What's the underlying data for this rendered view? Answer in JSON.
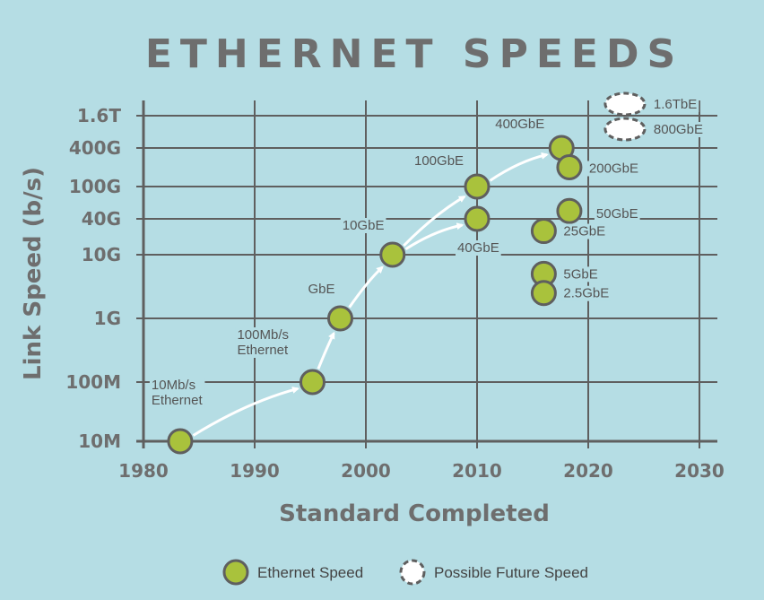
{
  "chart_data": {
    "type": "scatter",
    "title": "ETHERNET SPEEDS",
    "xlabel": "Standard Completed",
    "ylabel": "Link Speed (b/s)",
    "xlim": [
      1980,
      2030
    ],
    "xticks": [
      1980,
      1990,
      2000,
      2010,
      2020,
      2030
    ],
    "xtick_labels": [
      "1980",
      "1990",
      "2000",
      "2010",
      "2020",
      "2030"
    ],
    "y_scale": "log",
    "yticks": [
      {
        "label": "10M",
        "value": 10000000
      },
      {
        "label": "100M",
        "value": 100000000
      },
      {
        "label": "1G",
        "value": 1000000000
      },
      {
        "label": "10G",
        "value": 10000000000
      },
      {
        "label": "40G",
        "value": 40000000000
      },
      {
        "label": "100G",
        "value": 100000000000
      },
      {
        "label": "400G",
        "value": 400000000000
      },
      {
        "label": "1.6T",
        "value": 1600000000000
      }
    ],
    "grid": true,
    "series": [
      {
        "name": "Ethernet Speed",
        "color": "#a9c23c",
        "style": "solid",
        "points": [
          {
            "x": 1983.3,
            "y": 10000000,
            "label": "10Mb/s\nEthernet"
          },
          {
            "x": 1995.2,
            "y": 100000000,
            "label": "100Mb/s\nEthernet"
          },
          {
            "x": 1997.7,
            "y": 1000000000,
            "label": "GbE"
          },
          {
            "x": 2002.4,
            "y": 10000000000,
            "label": "10GbE"
          },
          {
            "x": 2010.0,
            "y": 40000000000,
            "label": "40GbE"
          },
          {
            "x": 2010.0,
            "y": 100000000000,
            "label": "100GbE"
          },
          {
            "x": 2017.6,
            "y": 400000000000,
            "label": "400GbE"
          },
          {
            "x": 2018.3,
            "y": 200000000000,
            "label": "200GbE"
          },
          {
            "x": 2018.3,
            "y": 50000000000,
            "label": "50GbE"
          },
          {
            "x": 2016.0,
            "y": 25000000000,
            "label": "25GbE"
          },
          {
            "x": 2016.0,
            "y": 5000000000,
            "label": "5GbE"
          },
          {
            "x": 2016.0,
            "y": 2500000000,
            "label": "2.5GbE"
          }
        ]
      },
      {
        "name": "Possible Future Speed",
        "color": "#ffffff",
        "style": "dashed",
        "points": [
          {
            "x": 2023.3,
            "y": 800000000000,
            "label": "800GbE"
          },
          {
            "x": 2023.3,
            "y": 1600000000000,
            "label": "1.6TbE"
          }
        ]
      }
    ],
    "arrows": [
      {
        "from": [
          1983.3,
          10000000
        ],
        "to": [
          1995.2,
          100000000
        ]
      },
      {
        "from": [
          1995.2,
          100000000
        ],
        "to": [
          1997.7,
          1000000000
        ]
      },
      {
        "from": [
          1997.7,
          1000000000
        ],
        "to": [
          2002.4,
          10000000000
        ]
      },
      {
        "from": [
          2002.4,
          10000000000
        ],
        "to": [
          2010.0,
          100000000000
        ]
      },
      {
        "from": [
          2002.4,
          10000000000
        ],
        "to": [
          2010.0,
          40000000000
        ]
      },
      {
        "from": [
          2010.0,
          100000000000
        ],
        "to": [
          2017.6,
          400000000000
        ]
      }
    ],
    "legend": {
      "placement": "bottom-center",
      "items": [
        {
          "label": "Ethernet Speed",
          "style": "solid"
        },
        {
          "label": "Possible Future Speed",
          "style": "dashed"
        }
      ]
    },
    "colors": {
      "background": "#b5dde4",
      "grid": "#5f5f5f",
      "text": "#6e6e6e",
      "arrow": "#ffffff",
      "marker_fill": "#a9c23c",
      "marker_stroke": "#5f5f5f"
    }
  }
}
